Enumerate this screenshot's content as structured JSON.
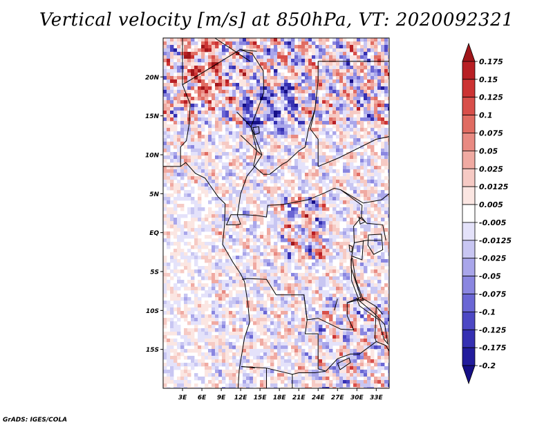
{
  "title": "Vertical velocity [m/s] at 850hPa, VT: 2020092321",
  "footer": "GrADS: IGES/COLA",
  "map": {
    "lat_labels": [
      "20N",
      "15N",
      "10N",
      "5N",
      "EQ",
      "5S",
      "10S",
      "15S"
    ],
    "lat_values": [
      20,
      15,
      10,
      5,
      0,
      -5,
      -10,
      -15
    ],
    "lon_labels": [
      "3E",
      "6E",
      "9E",
      "12E",
      "15E",
      "18E",
      "21E",
      "24E",
      "27E",
      "30E",
      "33E"
    ],
    "lon_values": [
      3,
      6,
      9,
      12,
      15,
      18,
      21,
      24,
      27,
      30,
      33
    ],
    "lon_range": [
      0,
      35
    ],
    "lat_range": [
      -20,
      25
    ]
  },
  "colorbar": {
    "labels": [
      "0.175",
      "0.15",
      "0.125",
      "0.1",
      "0.075",
      "0.05",
      "0.025",
      "0.0125",
      "0.005",
      "-0.005",
      "-0.0125",
      "-0.025",
      "-0.05",
      "-0.075",
      "-0.1",
      "-0.125",
      "-0.175",
      "-0.2"
    ],
    "colors": [
      "#a0161a",
      "#b81f24",
      "#cc3333",
      "#d84f4a",
      "#e06c62",
      "#e88a82",
      "#f0aaa2",
      "#f6cac4",
      "#fbe6e2",
      "#ffffff",
      "#e4e2fa",
      "#c8c6f2",
      "#a9a6ea",
      "#8a86e0",
      "#6a66d4",
      "#4d48c4",
      "#3530b2",
      "#221c9c",
      "#160f86"
    ]
  }
}
